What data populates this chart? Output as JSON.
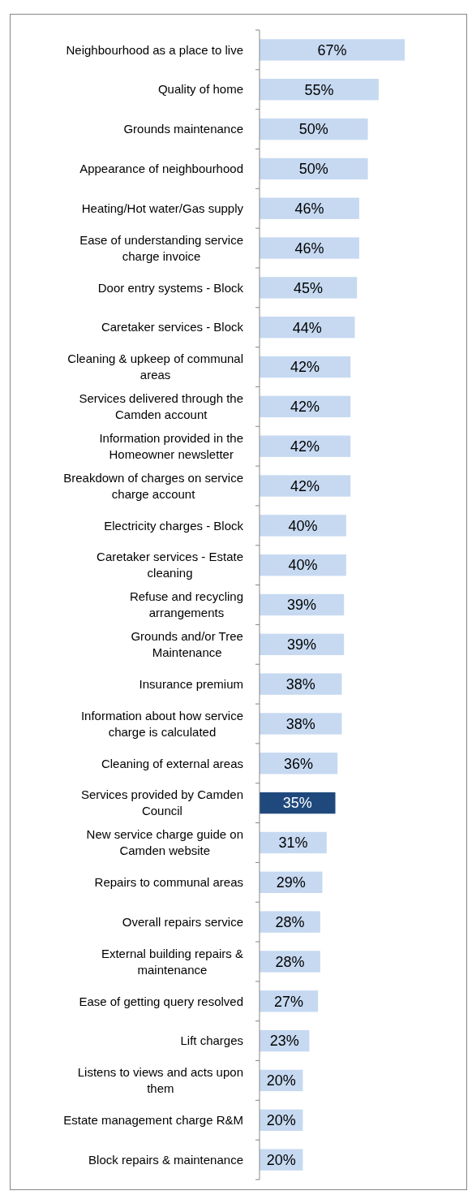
{
  "chart_data": {
    "type": "bar",
    "orientation": "horizontal",
    "categories": [
      "Neighbourhood as a place to live",
      "Quality of home",
      "Grounds maintenance",
      "Appearance of neighbourhood",
      "Heating/Hot water/Gas supply",
      "Ease of understanding service charge invoice",
      "Door entry systems - Block",
      "Caretaker services - Block",
      "Cleaning & upkeep of communal areas",
      "Services delivered through the Camden account",
      "Information provided in the Homeowner newsletter",
      "Breakdown of charges on service charge account",
      "Electricity charges - Block",
      "Caretaker services - Estate cleaning",
      "Refuse and recycling arrangements",
      "Grounds and/or Tree Maintenance",
      "Insurance premium",
      "Information about how service charge is calculated",
      "Cleaning of external areas",
      "Services provided by Camden Council",
      "New service charge guide on Camden website",
      "Repairs to communal areas",
      "Overall repairs service",
      "External building repairs & maintenance",
      "Ease of getting query resolved",
      "Lift charges",
      "Listens to views and acts upon them",
      "Estate management charge R&M",
      "Block repairs  & maintenance"
    ],
    "values": [
      67,
      55,
      50,
      50,
      46,
      46,
      45,
      44,
      42,
      42,
      42,
      42,
      40,
      40,
      39,
      39,
      38,
      38,
      36,
      35,
      31,
      29,
      28,
      28,
      27,
      23,
      20,
      20,
      20
    ],
    "value_labels": [
      "67%",
      "55%",
      "50%",
      "50%",
      "46%",
      "46%",
      "45%",
      "44%",
      "42%",
      "42%",
      "42%",
      "42%",
      "40%",
      "40%",
      "39%",
      "39%",
      "38%",
      "38%",
      "36%",
      "35%",
      "31%",
      "29%",
      "28%",
      "28%",
      "27%",
      "23%",
      "20%",
      "20%",
      "20%"
    ],
    "colors": [
      "#c6d9f1",
      "#c6d9f1",
      "#c6d9f1",
      "#c6d9f1",
      "#c6d9f1",
      "#c6d9f1",
      "#c6d9f1",
      "#c6d9f1",
      "#c6d9f1",
      "#c6d9f1",
      "#c6d9f1",
      "#c6d9f1",
      "#c6d9f1",
      "#c6d9f1",
      "#c6d9f1",
      "#c6d9f1",
      "#c6d9f1",
      "#c6d9f1",
      "#c6d9f1",
      "#1f497d",
      "#c6d9f1",
      "#c6d9f1",
      "#c6d9f1",
      "#c6d9f1",
      "#c6d9f1",
      "#c6d9f1",
      "#c6d9f1",
      "#c6d9f1",
      "#c6d9f1"
    ],
    "grid": false
  }
}
